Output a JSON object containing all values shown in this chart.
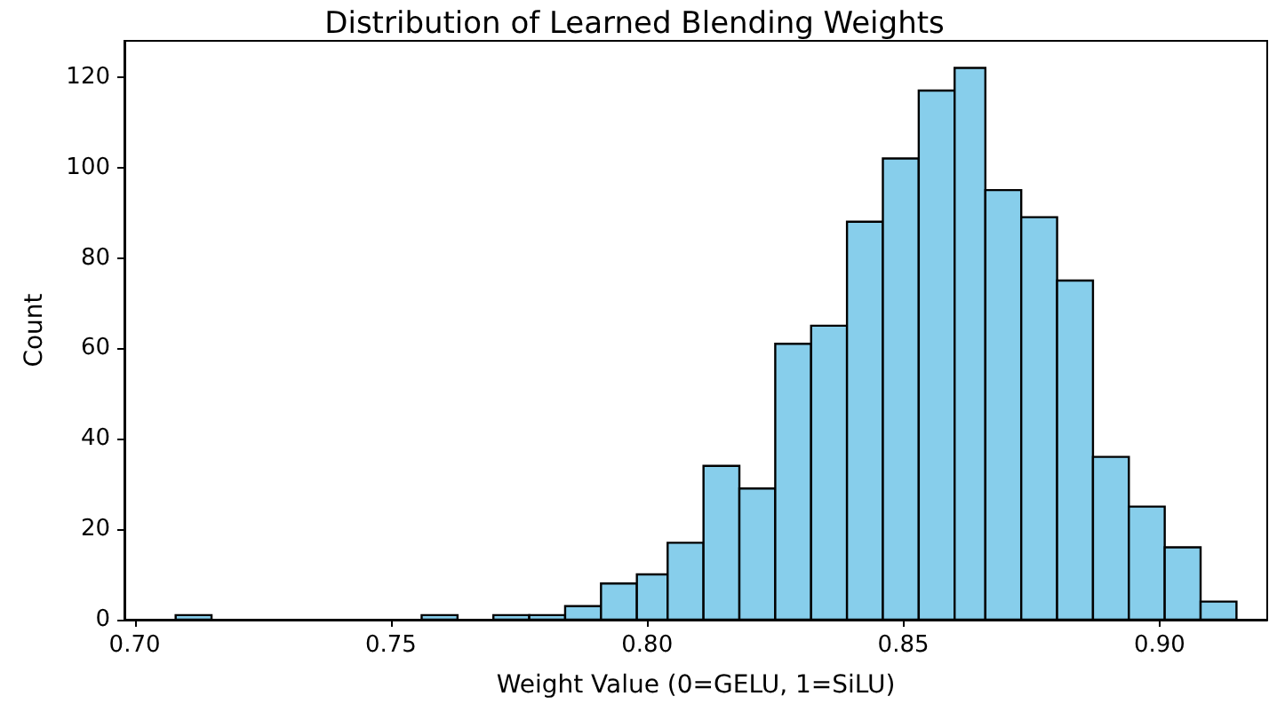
{
  "chart_data": {
    "type": "histogram",
    "title": "Distribution of Learned Blending Weights",
    "xlabel": "Weight Value (0=GELU, 1=SiLU)",
    "ylabel": "Count",
    "bins": [
      0.708,
      0.715,
      0.756,
      0.763,
      0.77,
      0.777,
      0.784,
      0.791,
      0.798,
      0.804,
      0.811,
      0.818,
      0.825,
      0.832,
      0.839,
      0.846,
      0.853,
      0.86,
      0.866,
      0.873,
      0.88,
      0.887,
      0.894,
      0.901,
      0.908,
      0.915
    ],
    "values": [
      1,
      0,
      1,
      0,
      1,
      1,
      3,
      8,
      10,
      17,
      34,
      29,
      61,
      65,
      88,
      102,
      117,
      122,
      95,
      89,
      75,
      36,
      25,
      16,
      4
    ],
    "color": "#87ceeb",
    "xlim": [
      0.698,
      0.921
    ],
    "ylim": [
      0,
      128
    ],
    "xticks": [
      {
        "value": 0.7,
        "label": "0.70"
      },
      {
        "value": 0.75,
        "label": "0.75"
      },
      {
        "value": 0.8,
        "label": "0.80"
      },
      {
        "value": 0.85,
        "label": "0.85"
      },
      {
        "value": 0.9,
        "label": "0.90"
      }
    ],
    "yticks": [
      0,
      20,
      40,
      60,
      80,
      100,
      120
    ],
    "grid": false
  }
}
